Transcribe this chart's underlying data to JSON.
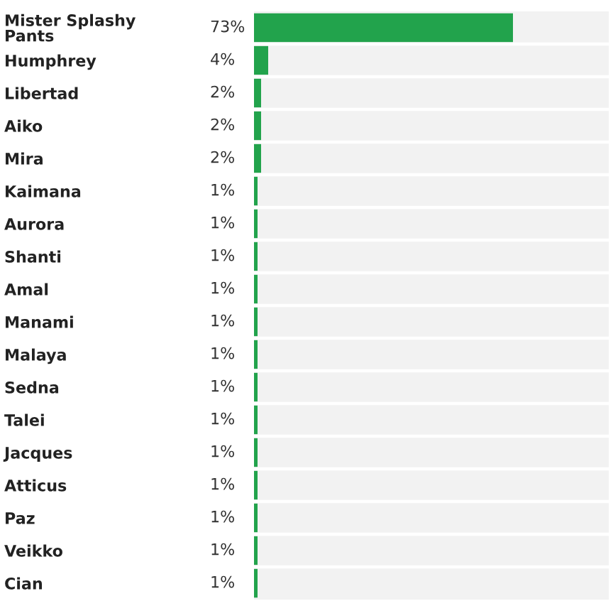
{
  "chart_data": {
    "type": "bar",
    "orientation": "horizontal",
    "categories": [
      "Mister Splashy Pants",
      "Humphrey",
      "Libertad",
      "Aiko",
      "Mira",
      "Kaimana",
      "Aurora",
      "Shanti",
      "Amal",
      "Manami",
      "Malaya",
      "Sedna",
      "Talei",
      "Jacques",
      "Atticus",
      "Paz",
      "Veikko",
      "Cian"
    ],
    "values": [
      73,
      4,
      2,
      2,
      2,
      1,
      1,
      1,
      1,
      1,
      1,
      1,
      1,
      1,
      1,
      1,
      1,
      1
    ],
    "value_labels": [
      "73%",
      "4%",
      "2%",
      "2%",
      "2%",
      "1%",
      "1%",
      "1%",
      "1%",
      "1%",
      "1%",
      "1%",
      "1%",
      "1%",
      "1%",
      "1%",
      "1%",
      "1%"
    ],
    "color": "#22a34c",
    "xlim": [
      0,
      100
    ],
    "grid": "y",
    "tick_labels": "y"
  }
}
